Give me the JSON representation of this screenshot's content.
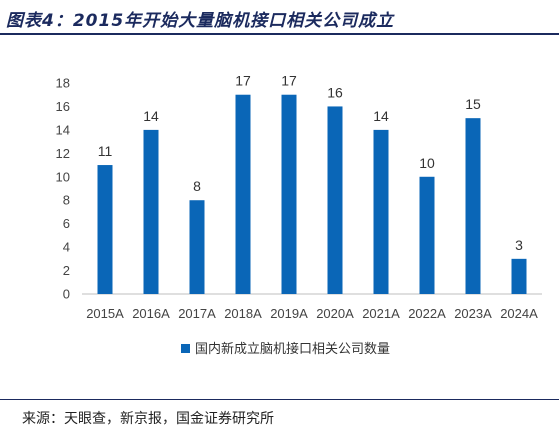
{
  "header": {
    "title": "图表4：2015年开始大量脑机接口相关公司成立"
  },
  "footer": {
    "source": "来源：天眼查，新京报，国金证券研究所"
  },
  "colors": {
    "bar": "#0a66b7",
    "title": "#1b2a5e"
  },
  "chart_data": {
    "type": "bar",
    "categories": [
      "2015A",
      "2016A",
      "2017A",
      "2018A",
      "2019A",
      "2020A",
      "2021A",
      "2022A",
      "2023A",
      "2024A"
    ],
    "series": [
      {
        "name": "国内新成立脑机接口相关公司数量",
        "values": [
          11,
          14,
          8,
          17,
          17,
          16,
          14,
          10,
          15,
          3
        ]
      }
    ],
    "yticks": [
      0,
      2,
      4,
      6,
      8,
      10,
      12,
      14,
      16,
      18
    ],
    "ylim": [
      0,
      18
    ],
    "grid": false,
    "legend_position": "bottom-center",
    "data_labels": true
  }
}
